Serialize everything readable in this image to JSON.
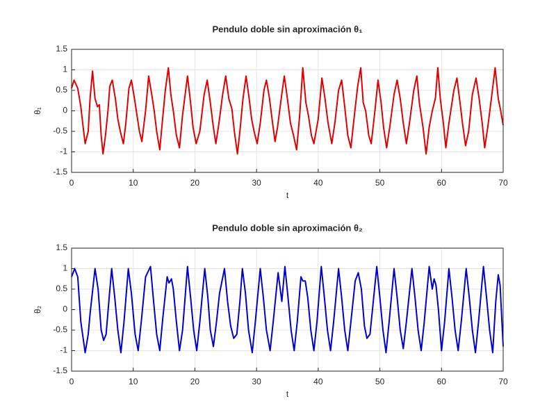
{
  "chart_data": [
    {
      "type": "line",
      "title": "Pendulo doble sin aproximación θ₁",
      "xlabel": "t",
      "ylabel": "θ₁",
      "color": "#e00000",
      "xlim": [
        0,
        70
      ],
      "xticks": [
        0,
        10,
        20,
        30,
        40,
        50,
        60,
        70
      ],
      "ylim": [
        -1.5,
        1.5
      ],
      "yticks": [
        -1.5,
        -1,
        -0.5,
        0,
        0.5,
        1,
        1.5
      ],
      "grid": true,
      "x": [
        0,
        0.4,
        1,
        1.5,
        1.8,
        2.2,
        2.7,
        3,
        3.4,
        3.8,
        4.2,
        4.5,
        4.8,
        5.1,
        5.5,
        5.9,
        6.2,
        6.6,
        7.1,
        7.5,
        7.9,
        8.4,
        8.8,
        9.3,
        9.7,
        10.2,
        10.6,
        11,
        11.4,
        12,
        12.5,
        13,
        13.4,
        13.8,
        14.3,
        14.7,
        15.2,
        15.7,
        16.1,
        16.5,
        17,
        17.5,
        18,
        18.8,
        19.3,
        19.7,
        20.2,
        20.8,
        21.5,
        22,
        22.5,
        23,
        23.4,
        23.9,
        24.5,
        25,
        25.5,
        26,
        26.4,
        26.9,
        27.3,
        27.8,
        28.3,
        28.8,
        29.2,
        29.6,
        30.1,
        30.6,
        31.2,
        31.6,
        32.1,
        32.6,
        33,
        33.4,
        34,
        34.5,
        35,
        35.5,
        36,
        36.5,
        37,
        37.5,
        38,
        38.4,
        38.9,
        39.3,
        40,
        40.6,
        41.1,
        41.6,
        42.2,
        42.7,
        43.3,
        43.8,
        44.3,
        44.8,
        45.3,
        45.8,
        46.4,
        46.9,
        47.3,
        47.7,
        48.2,
        48.6,
        49.2,
        49.7,
        50.2,
        50.6,
        51.1,
        51.6,
        52.3,
        52.8,
        53.3,
        53.8,
        54.3,
        54.8,
        55.5,
        56,
        56.4,
        57,
        57.5,
        58,
        58.5,
        59,
        59.4,
        59.8,
        60.3,
        60.7,
        61.2,
        62,
        62.5,
        63,
        63.4,
        63.9,
        64.4,
        65,
        65.6,
        66.1,
        66.6,
        67,
        67.5,
        68,
        68.7,
        69.2,
        69.6,
        70
      ],
      "values": [
        0.55,
        0.75,
        0.55,
        0.1,
        -0.3,
        -0.8,
        -0.5,
        0.3,
        0.97,
        0.3,
        0.1,
        0.15,
        -0.6,
        -1.05,
        -0.6,
        0,
        0.6,
        0.75,
        0.3,
        -0.2,
        -0.5,
        -0.8,
        -0.3,
        0.55,
        0.75,
        0.3,
        -0.1,
        -0.5,
        -0.75,
        0,
        0.85,
        0.4,
        0,
        -0.5,
        -0.95,
        -0.3,
        0.5,
        1.05,
        0.4,
        0,
        -0.6,
        -0.9,
        -0.1,
        0.85,
        0.2,
        -0.4,
        -0.8,
        -0.5,
        0.4,
        0.75,
        0.2,
        -0.4,
        -0.8,
        -0.3,
        0.4,
        0.85,
        0.3,
        0.05,
        -0.5,
        -1.05,
        -0.5,
        0.3,
        0.85,
        0.3,
        -0.2,
        -0.5,
        -0.8,
        -0.3,
        0.5,
        0.75,
        0.3,
        -0.3,
        -0.75,
        -0.4,
        0.3,
        0.85,
        0.3,
        -0.3,
        -0.6,
        -0.95,
        -0.1,
        1.05,
        0.2,
        -0.1,
        -0.6,
        -0.8,
        -0.2,
        0.8,
        0.3,
        -0.3,
        -0.8,
        -0.3,
        0.5,
        0.75,
        0.1,
        -0.6,
        -0.9,
        -0.2,
        0.6,
        1.05,
        0.2,
        0,
        -0.6,
        -0.8,
        0,
        0.75,
        0.2,
        -0.4,
        -0.9,
        -0.4,
        0.4,
        0.75,
        0.3,
        -0.3,
        -0.8,
        -0.3,
        0.5,
        0.85,
        0.2,
        -0.4,
        -1.05,
        -0.4,
        0,
        0.3,
        1.05,
        0.3,
        -0.3,
        -0.9,
        -0.3,
        0.5,
        0.8,
        0.2,
        -0.3,
        -0.85,
        -0.5,
        0.4,
        0.8,
        0.3,
        -0.3,
        -0.9,
        -0.4,
        0.2,
        1.05,
        0.3,
        0,
        -0.35
      ]
    },
    {
      "type": "line",
      "title": "Pendulo doble sin aproximación θ₂",
      "xlabel": "t",
      "ylabel": "θ₂",
      "color": "#0000d0",
      "xlim": [
        0,
        70
      ],
      "xticks": [
        0,
        10,
        20,
        30,
        40,
        50,
        60,
        70
      ],
      "ylim": [
        -1.5,
        1.5
      ],
      "yticks": [
        -1.5,
        -1,
        -0.5,
        0,
        0.5,
        1,
        1.5
      ],
      "grid": true,
      "x": [
        0,
        0.5,
        1,
        1.5,
        2.2,
        2.7,
        3,
        3.8,
        4.3,
        4.8,
        5.2,
        5.6,
        6.1,
        6.5,
        7,
        7.5,
        8,
        8.5,
        9.2,
        9.7,
        10.3,
        10.8,
        11.3,
        12,
        12.8,
        13.3,
        13.8,
        14.3,
        14.8,
        15.5,
        15.8,
        16.2,
        16.5,
        17,
        17.5,
        18,
        18.8,
        19.3,
        19.8,
        20.3,
        20.8,
        21.6,
        22.1,
        22.5,
        23,
        23.5,
        24,
        24.8,
        25.3,
        25.8,
        26.3,
        26.8,
        27.3,
        27.7,
        28.2,
        28.7,
        29.3,
        29.8,
        30.6,
        31.1,
        31.6,
        32.2,
        32.7,
        33.5,
        34.1,
        34.6,
        35.1,
        35.6,
        36.1,
        36.6,
        37.2,
        37.5,
        37.9,
        38.3,
        38.8,
        39.3,
        39.8,
        40.5,
        41,
        41.5,
        42,
        42.5,
        43.3,
        43.8,
        44.3,
        44.8,
        45.3,
        46,
        46.5,
        47,
        47.5,
        47.9,
        48.4,
        49,
        49.5,
        50,
        50.5,
        51,
        51.5,
        52.3,
        52.8,
        53.3,
        53.8,
        54.3,
        55.2,
        55.7,
        56.2,
        56.7,
        57.2,
        58,
        58.5,
        58.8,
        59.1,
        59.5,
        60,
        60.5,
        61.2,
        61.7,
        62.2,
        62.7,
        63.2,
        64,
        64.5,
        65,
        65.5,
        66,
        66.8,
        67.3,
        67.8,
        68.3,
        68.8,
        69.2,
        69.5,
        69.7,
        70
      ],
      "values": [
        0.8,
        1,
        0.8,
        -0.3,
        -1.05,
        -0.6,
        -0.1,
        1,
        0.5,
        -0.5,
        -0.75,
        -0.6,
        0.3,
        1,
        0.3,
        -0.5,
        -1.05,
        -0.3,
        1,
        0.4,
        -0.6,
        -1,
        -0.3,
        0.8,
        1.05,
        0.2,
        -0.6,
        -1,
        -0.2,
        0.8,
        0.65,
        0.75,
        0.5,
        -0.3,
        -1,
        -0.5,
        1.05,
        0.3,
        -0.5,
        -1,
        -0.3,
        1,
        0.3,
        -0.5,
        -0.9,
        -0.3,
        0.4,
        1,
        0.2,
        -0.4,
        -0.7,
        -0.6,
        0.2,
        1,
        0.4,
        -0.5,
        -1.05,
        -0.3,
        1,
        0.3,
        -0.5,
        -1,
        -0.3,
        0.9,
        0.2,
        1.05,
        0.3,
        -0.5,
        -1,
        -0.3,
        0.8,
        0.7,
        0.7,
        0.3,
        -0.5,
        -1,
        -0.3,
        1.05,
        0.3,
        -0.5,
        -1,
        -0.3,
        1,
        0.3,
        -0.5,
        -1,
        -0.3,
        0.7,
        0.9,
        0.5,
        -0.4,
        -0.7,
        -0.6,
        0.3,
        1.05,
        0.3,
        -0.5,
        -1.05,
        -0.3,
        1,
        0.3,
        -0.5,
        -0.95,
        -0.3,
        1,
        0.3,
        -0.5,
        -1,
        -0.3,
        1.05,
        0.5,
        0.75,
        0.6,
        0,
        -1,
        -0.3,
        1,
        0.3,
        -0.5,
        -1,
        -0.3,
        1,
        0.3,
        -0.5,
        -1.05,
        -0.3,
        1.05,
        0.3,
        -0.5,
        -1.05,
        0.2,
        0.85,
        0.6,
        0,
        -0.9
      ]
    }
  ]
}
